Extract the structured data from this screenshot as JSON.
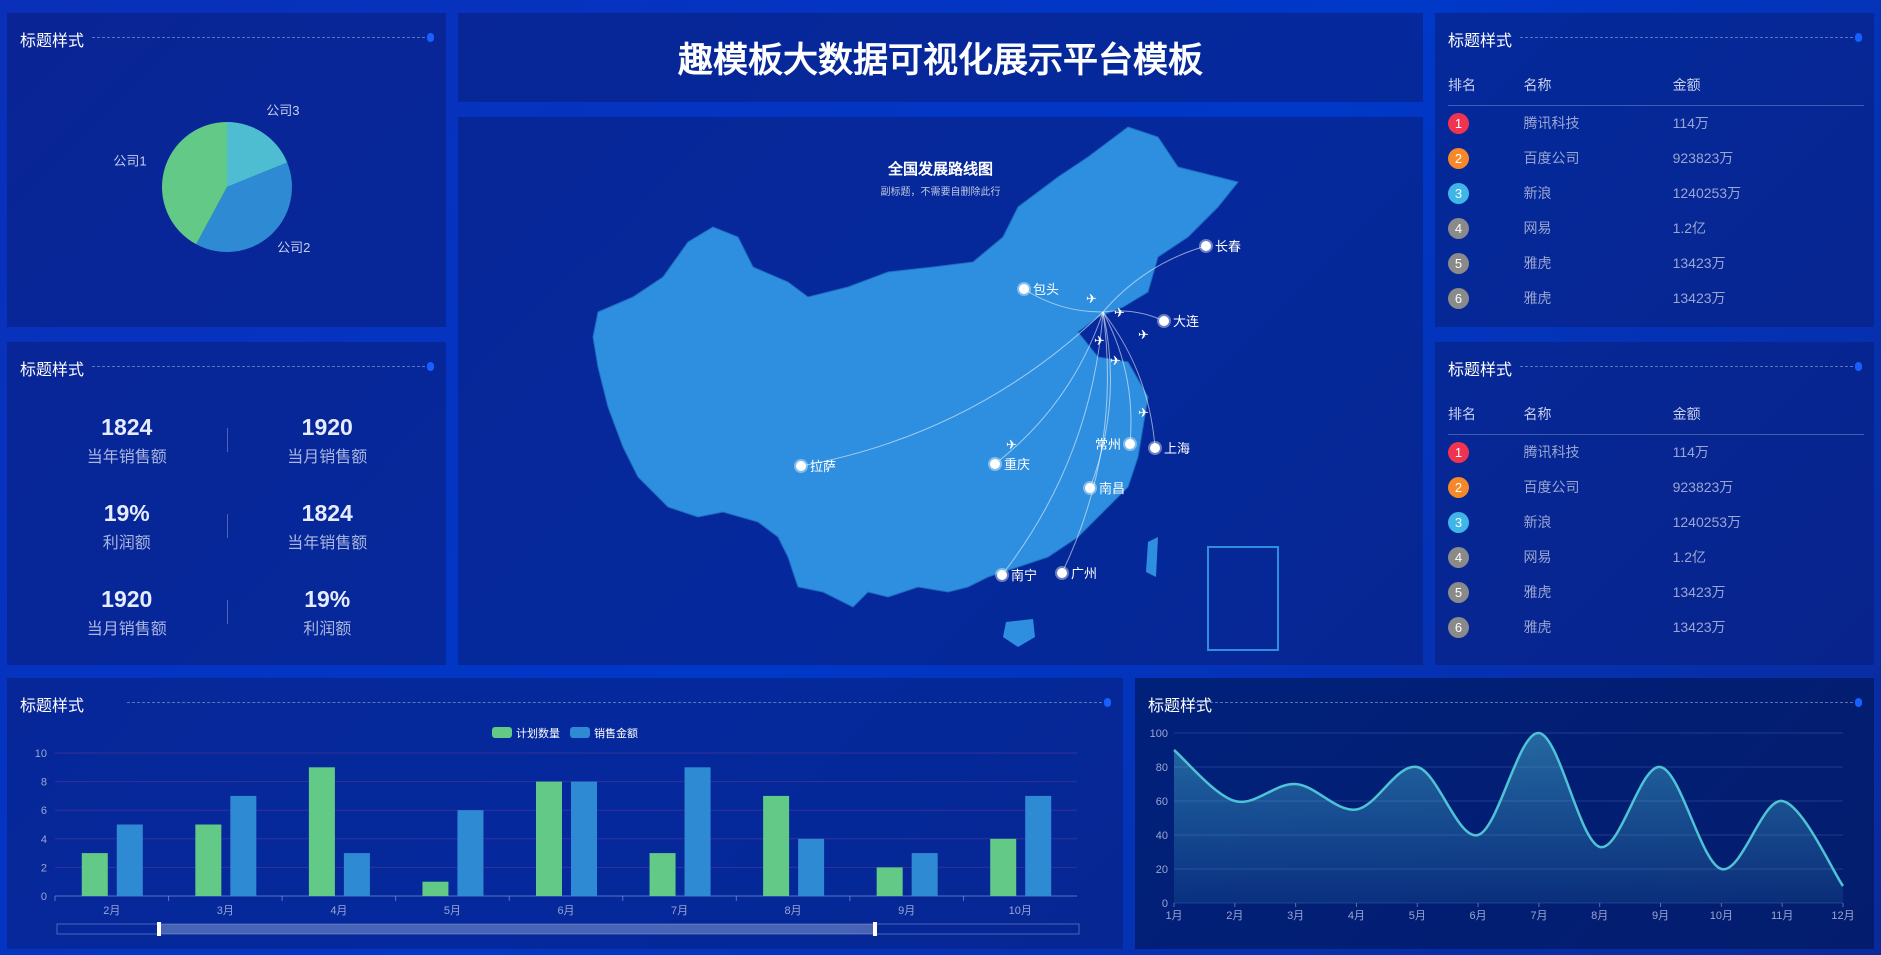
{
  "header": {
    "title": "趣模板大数据可视化展示平台模板"
  },
  "panel_title": "标题样式",
  "pie": {
    "chart_data": {
      "type": "pie",
      "slices": [
        {
          "label": "公司1",
          "value": 335,
          "color": "#62c987"
        },
        {
          "label": "公司2",
          "value": 310,
          "color": "#2f8ad4"
        },
        {
          "label": "公司3",
          "value": 150,
          "color": "#4fbdd1"
        }
      ]
    }
  },
  "kpis": [
    [
      {
        "value": "1824",
        "label": "当年销售额"
      },
      {
        "value": "1920",
        "label": "当月销售额"
      }
    ],
    [
      {
        "value": "19%",
        "label": "利润额"
      },
      {
        "value": "1824",
        "label": "当年销售额"
      }
    ],
    [
      {
        "value": "1920",
        "label": "当月销售额"
      },
      {
        "value": "19%",
        "label": "利润额"
      }
    ]
  ],
  "ranking": {
    "headers": [
      "排名",
      "名称",
      "金额"
    ],
    "rows": [
      {
        "rank": "1",
        "name": "腾讯科技",
        "amount": "114万",
        "color": "#f0344f"
      },
      {
        "rank": "2",
        "name": "百度公司",
        "amount": "923823万",
        "color": "#f5892a"
      },
      {
        "rank": "3",
        "name": "新浪",
        "amount": "1240253万",
        "color": "#3fb6e8"
      },
      {
        "rank": "4",
        "name": "网易",
        "amount": "1.2亿",
        "color": "#8a8a8a"
      },
      {
        "rank": "5",
        "name": "雅虎",
        "amount": "13423万",
        "color": "#8a8a8a"
      },
      {
        "rank": "6",
        "name": "雅虎",
        "amount": "13423万",
        "color": "#8a8a8a"
      }
    ]
  },
  "map": {
    "title": "全国发展路线图",
    "subtitle": "副标题，不需要自删除此行",
    "cities": [
      "长春",
      "包头",
      "大连",
      "拉萨",
      "重庆",
      "常州",
      "上海",
      "南昌",
      "南宁",
      "广州"
    ]
  },
  "chart_data": [
    {
      "type": "bar",
      "categories": [
        "2月",
        "3月",
        "4月",
        "5月",
        "6月",
        "7月",
        "8月",
        "9月",
        "10月"
      ],
      "ylim": [
        0,
        10
      ],
      "yticks": [
        0,
        2,
        4,
        6,
        8,
        10
      ],
      "legend": "top-center",
      "grid": true,
      "series": [
        {
          "name": "计划数量",
          "color": "#62c987",
          "values": [
            3,
            5,
            9,
            1,
            8,
            3,
            7,
            2,
            4
          ]
        },
        {
          "name": "销售金额",
          "color": "#2f8ad4",
          "values": [
            5,
            7,
            3,
            6,
            8,
            9,
            4,
            3,
            7
          ]
        }
      ]
    },
    {
      "type": "area",
      "categories": [
        "1月",
        "2月",
        "3月",
        "4月",
        "5月",
        "6月",
        "7月",
        "8月",
        "9月",
        "10月",
        "11月",
        "12月"
      ],
      "ylim": [
        0,
        100
      ],
      "yticks": [
        0,
        20,
        40,
        60,
        80,
        100
      ],
      "grid": true,
      "color": "#4fc3d6",
      "values": [
        90,
        60,
        70,
        55,
        80,
        40,
        100,
        33,
        80,
        20,
        60,
        10
      ]
    }
  ]
}
